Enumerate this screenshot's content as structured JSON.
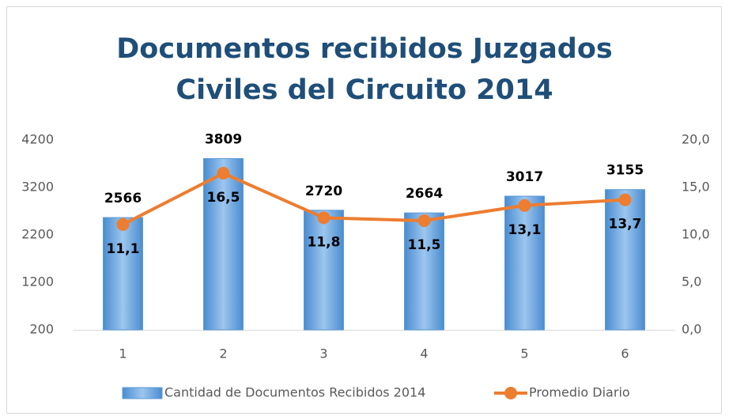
{
  "chart_data": {
    "type": "bar_line",
    "title": "Documentos recibidos Juzgados Civiles del Circuito 2014",
    "categories": [
      "1",
      "2",
      "3",
      "4",
      "5",
      "6"
    ],
    "series": [
      {
        "name": "Cantidad de Documentos Recibidos 2014",
        "color": "#5b9bd5",
        "type": "bar",
        "values": [
          2566,
          3809,
          2720,
          2664,
          3017,
          3155
        ]
      },
      {
        "name": "Promedio Diario",
        "color": "#ed7d31",
        "type": "line",
        "axis": "y2",
        "values": [
          11.1,
          16.5,
          11.8,
          11.5,
          13.1,
          13.7
        ],
        "value_labels": [
          "11,1",
          "16,5",
          "11,8",
          "11,5",
          "13,1",
          "13,7"
        ]
      }
    ],
    "ylim": [
      200,
      4200
    ],
    "yticks": [
      200,
      1200,
      2200,
      3200,
      4200
    ],
    "y2lim": [
      0,
      20
    ],
    "y2ticks": [
      {
        "value": 0,
        "label": "0,0"
      },
      {
        "value": 5,
        "label": "5,0"
      },
      {
        "value": 10,
        "label": "10,0"
      },
      {
        "value": 15,
        "label": "15,0"
      },
      {
        "value": 20,
        "label": "20,0"
      }
    ],
    "legend": "bottom"
  }
}
